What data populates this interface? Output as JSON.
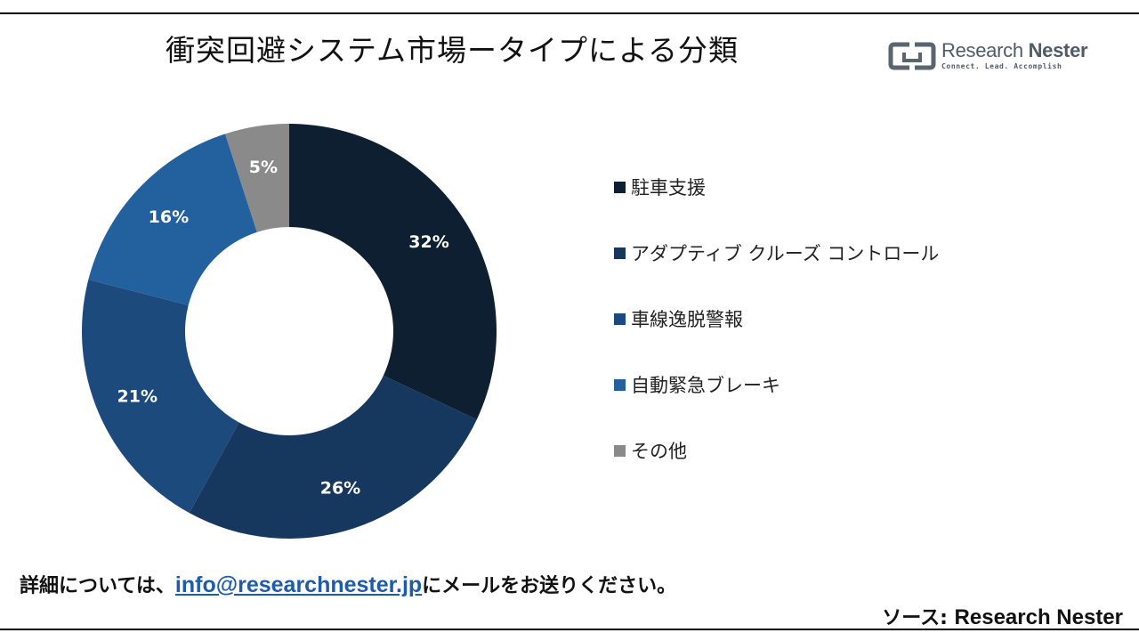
{
  "title": "衝突回避システム市場ータイプによる分類",
  "brand": {
    "name_light": "Research ",
    "name_bold": "Nester",
    "tagline": "Connect. Lead. Accomplish"
  },
  "chart_data": {
    "type": "pie",
    "variant": "donut",
    "categories": [
      "駐車支援",
      "アダプティブ クルーズ コントロール",
      "車線逸脱警報",
      "自動緊急ブレーキ",
      "その他"
    ],
    "values": [
      32,
      26,
      21,
      16,
      5
    ],
    "value_labels": [
      "32%",
      "26%",
      "21%",
      "16%",
      "5%"
    ],
    "colors": [
      "#0d1f30",
      "#16375e",
      "#1c4a7c",
      "#22619d",
      "#8a8a8a"
    ],
    "start_angle": "12 o'clock",
    "direction": "clockwise",
    "legend_position": "right"
  },
  "footer": {
    "note_before": "詳細については、",
    "email": "info@researchnester.jp",
    "note_after": "にメールをお送りください。",
    "source_prefix": "ソース: ",
    "source_name": "Research Nester"
  }
}
